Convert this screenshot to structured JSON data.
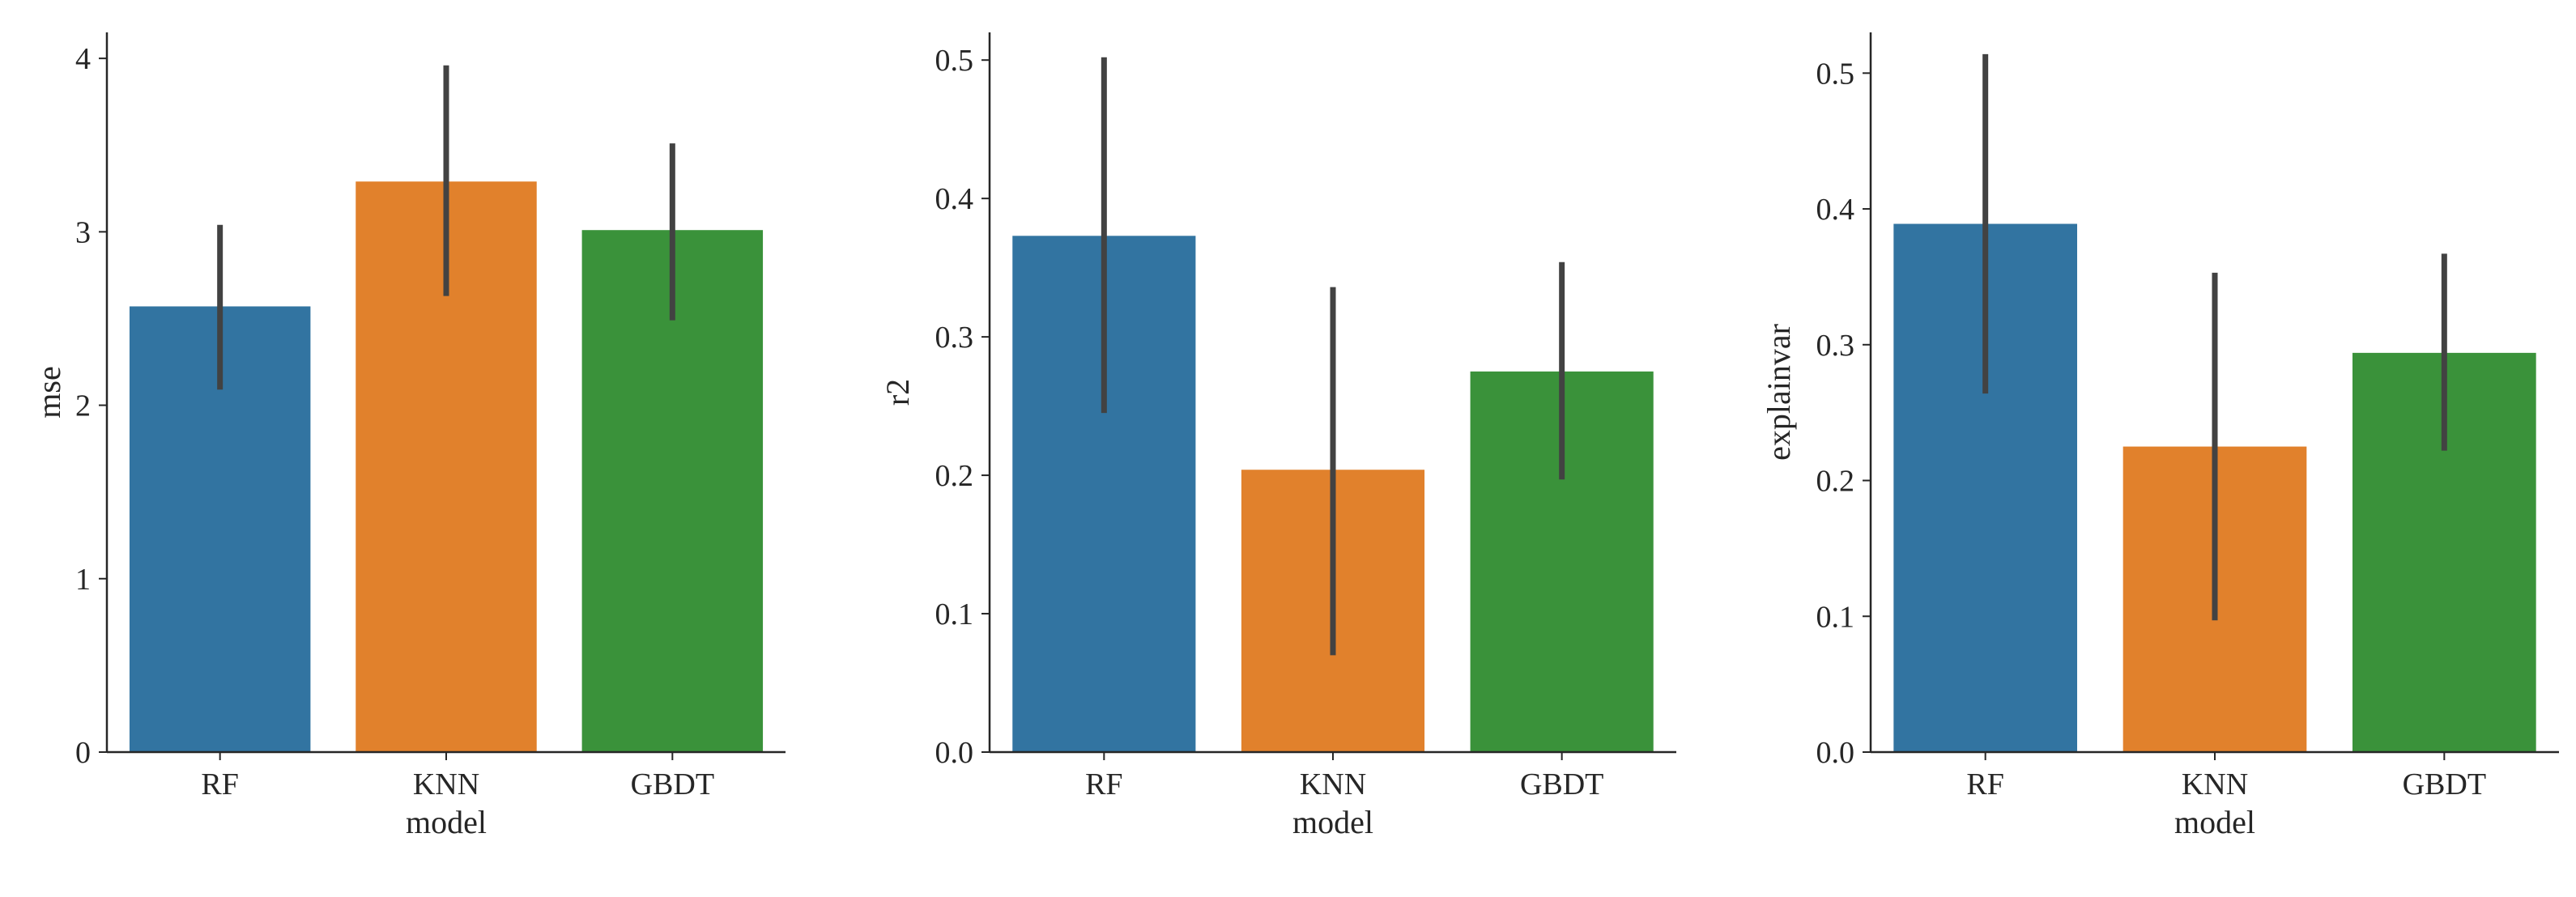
{
  "chart_data": [
    {
      "type": "bar",
      "xlabel": "model",
      "ylabel": "mse",
      "categories": [
        "RF",
        "KNN",
        "GBDT"
      ],
      "values": [
        2.57,
        3.29,
        3.01
      ],
      "error_low": [
        2.09,
        2.63,
        2.49
      ],
      "error_high": [
        3.04,
        3.96,
        3.51
      ],
      "ylim": [
        0,
        4.15
      ],
      "yticks": [
        0,
        1,
        2,
        3,
        4
      ],
      "ytick_labels": [
        "0",
        "1",
        "2",
        "3",
        "4"
      ],
      "colors": [
        "#3274a1",
        "#e1812c",
        "#3a923a"
      ],
      "errorbar_color": "#424242",
      "xlabel_shown": true
    },
    {
      "type": "bar",
      "xlabel": "model",
      "ylabel": "r2",
      "categories": [
        "RF",
        "KNN",
        "GBDT"
      ],
      "values": [
        0.373,
        0.204,
        0.275
      ],
      "error_low": [
        0.245,
        0.07,
        0.197
      ],
      "error_high": [
        0.502,
        0.336,
        0.354
      ],
      "ylim": [
        0,
        0.52
      ],
      "yticks": [
        0,
        0.1,
        0.2,
        0.3,
        0.4,
        0.5
      ],
      "ytick_labels": [
        "0.0",
        "0.1",
        "0.2",
        "0.3",
        "0.4",
        "0.5"
      ],
      "colors": [
        "#3274a1",
        "#e1812c",
        "#3a923a"
      ],
      "errorbar_color": "#424242",
      "xlabel_shown": true
    },
    {
      "type": "bar",
      "xlabel": "model",
      "ylabel": "explainvar",
      "categories": [
        "RF",
        "KNN",
        "GBDT"
      ],
      "values": [
        0.389,
        0.225,
        0.294
      ],
      "error_low": [
        0.264,
        0.097,
        0.222
      ],
      "error_high": [
        0.514,
        0.353,
        0.367
      ],
      "ylim": [
        0,
        0.53
      ],
      "yticks": [
        0,
        0.1,
        0.2,
        0.3,
        0.4,
        0.5
      ],
      "ytick_labels": [
        "0.0",
        "0.1",
        "0.2",
        "0.3",
        "0.4",
        "0.5"
      ],
      "colors": [
        "#3274a1",
        "#e1812c",
        "#3a923a"
      ],
      "errorbar_color": "#424242",
      "xlabel_shown": true
    }
  ]
}
